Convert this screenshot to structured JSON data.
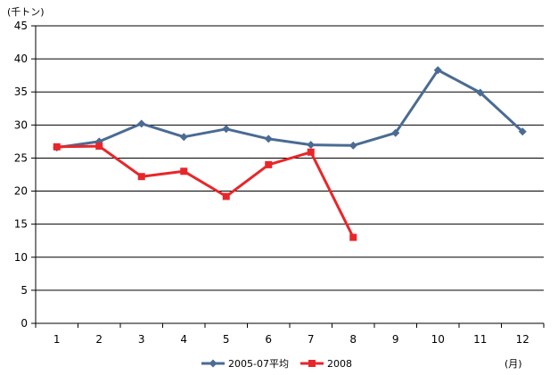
{
  "chart_data": {
    "type": "line",
    "y_unit_label": "(千トン)",
    "x_unit_label": "(月)",
    "categories": [
      "1",
      "2",
      "3",
      "4",
      "5",
      "6",
      "7",
      "8",
      "9",
      "10",
      "11",
      "12"
    ],
    "ylim": [
      0,
      45
    ],
    "yticks": [
      0,
      5,
      10,
      15,
      20,
      25,
      30,
      35,
      40,
      45
    ],
    "ytick_labels": [
      "0",
      "5",
      "10",
      "15",
      "20",
      "25",
      "30",
      "35",
      "40",
      "45"
    ],
    "grid": true,
    "legend_position": "bottom",
    "series": [
      {
        "name": "2005-07平均",
        "color": "#4a6b93",
        "marker": "diamond",
        "values": [
          26.6,
          27.5,
          30.2,
          28.2,
          29.4,
          27.9,
          27.0,
          26.9,
          28.8,
          38.3,
          34.9,
          29.0
        ]
      },
      {
        "name": "2008",
        "color": "#e8262a",
        "marker": "square",
        "values": [
          26.7,
          26.8,
          22.2,
          23.0,
          19.2,
          24.0,
          25.9,
          13.0,
          null,
          null,
          null,
          null
        ]
      }
    ]
  }
}
